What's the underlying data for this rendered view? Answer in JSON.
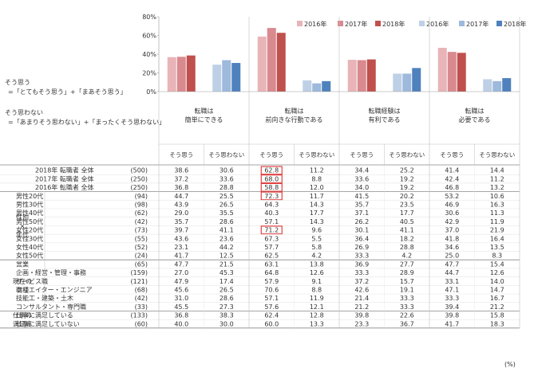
{
  "colors": {
    "yes_2016": "#e8b4b8",
    "yes_2017": "#d98a8f",
    "yes_2018": "#c0504d",
    "no_2016": "#bed0e6",
    "no_2017": "#9db9dc",
    "no_2018": "#4f81bd",
    "highlight_box": "#e03030",
    "grid": "#bfbfbf"
  },
  "definitions": {
    "yes_title": "そう思う",
    "yes_formula": "=「とてもそう思う」+「まあそう思う」",
    "no_title": "そう思わない",
    "no_formula": "=「あまりそう思わない」+「まったくそう思わない」"
  },
  "unit_note": "(%)",
  "legend": {
    "yes": [
      "2016年",
      "2017年",
      "2018年"
    ],
    "no": [
      "2016年",
      "2017年",
      "2018年"
    ]
  },
  "col_headers": [
    "そう思う",
    "そう思わない",
    "そう思う",
    "そう思わない",
    "そう思う",
    "そう思わない",
    "そう思う",
    "そう思わない"
  ],
  "chart_data": {
    "type": "bar",
    "ylim": [
      0,
      80
    ],
    "yticks": [
      "0%",
      "20%",
      "40%",
      "60%",
      "80%"
    ],
    "groups": [
      {
        "label_lines": [
          "転職は",
          "簡単にできる"
        ],
        "yes": [
          36.8,
          37.2,
          38.6
        ],
        "no": [
          28.8,
          33.6,
          30.6
        ]
      },
      {
        "label_lines": [
          "転職は",
          "前向きな行動である"
        ],
        "yes": [
          58.8,
          68.0,
          62.8
        ],
        "no": [
          12.0,
          8.8,
          11.2
        ]
      },
      {
        "label_lines": [
          "転職経験は",
          "有利である"
        ],
        "yes": [
          34.0,
          33.6,
          34.4
        ],
        "no": [
          19.2,
          19.2,
          25.2
        ]
      },
      {
        "label_lines": [
          "転職は",
          "必要である"
        ],
        "yes": [
          46.8,
          42.4,
          41.4
        ],
        "no": [
          13.2,
          11.2,
          14.4
        ]
      }
    ],
    "series": [
      {
        "name": "2016年",
        "kind": "yes"
      },
      {
        "name": "2017年",
        "kind": "yes"
      },
      {
        "name": "2018年",
        "kind": "yes"
      },
      {
        "name": "2016年",
        "kind": "no"
      },
      {
        "name": "2017年",
        "kind": "no"
      },
      {
        "name": "2018年",
        "kind": "no"
      }
    ]
  },
  "table": {
    "sections": [
      {
        "category": "",
        "rows": [
          {
            "label": "2018年 転職者 全体",
            "n": "(500)",
            "values": [
              "38.6",
              "30.6",
              "62.8",
              "11.2",
              "34.4",
              "25.2",
              "41.4",
              "14.4"
            ],
            "hl": 2
          },
          {
            "label": "2017年 転職者 全体",
            "n": "(250)",
            "values": [
              "37.2",
              "33.6",
              "68.0",
              "8.8",
              "33.6",
              "19.2",
              "42.4",
              "11.2"
            ],
            "hl": 2
          },
          {
            "label": "2016年 転職者 全体",
            "n": "(250)",
            "values": [
              "36.8",
              "28.8",
              "58.8",
              "12.0",
              "34.0",
              "19.2",
              "46.8",
              "13.2"
            ],
            "hl": 2
          }
        ]
      },
      {
        "category_lines": [
          "性別",
          "×",
          "年代"
        ],
        "rows": [
          {
            "label": "男性20代",
            "n": "(94)",
            "values": [
              "44.7",
              "25.5",
              "72.3",
              "11.7",
              "41.5",
              "20.2",
              "53.2",
              "10.6"
            ],
            "hl": 2
          },
          {
            "label": "男性30代",
            "n": "(98)",
            "values": [
              "43.9",
              "26.5",
              "64.3",
              "14.3",
              "35.7",
              "23.5",
              "46.9",
              "16.3"
            ]
          },
          {
            "label": "男性40代",
            "n": "(62)",
            "values": [
              "29.0",
              "35.5",
              "40.3",
              "17.7",
              "37.1",
              "17.7",
              "30.6",
              "11.3"
            ]
          },
          {
            "label": "男性50代",
            "n": "(42)",
            "values": [
              "35.7",
              "28.6",
              "57.1",
              "14.3",
              "26.2",
              "40.5",
              "42.9",
              "11.9"
            ]
          },
          {
            "label": "女性20代",
            "n": "(73)",
            "values": [
              "39.7",
              "41.1",
              "71.2",
              "9.6",
              "30.1",
              "41.1",
              "37.0",
              "21.9"
            ],
            "hl": 2
          },
          {
            "label": "女性30代",
            "n": "(55)",
            "values": [
              "43.6",
              "23.6",
              "67.3",
              "5.5",
              "36.4",
              "18.2",
              "41.8",
              "16.4"
            ]
          },
          {
            "label": "女性40代",
            "n": "(52)",
            "values": [
              "23.1",
              "44.2",
              "57.7",
              "5.8",
              "26.9",
              "28.8",
              "34.6",
              "13.5"
            ]
          },
          {
            "label": "女性50代",
            "n": "(24)",
            "values": [
              "41.7",
              "12.5",
              "62.5",
              "4.2",
              "33.3",
              "4.2",
              "25.0",
              "8.3"
            ]
          }
        ]
      },
      {
        "category_lines": [
          "現在の",
          "職種"
        ],
        "rows": [
          {
            "label": "営業",
            "n": "(65)",
            "values": [
              "47.7",
              "21.5",
              "63.1",
              "13.8",
              "36.9",
              "27.7",
              "47.7",
              "15.4"
            ]
          },
          {
            "label": "企画・経営・管理・事務",
            "n": "(159)",
            "values": [
              "27.0",
              "45.3",
              "64.8",
              "12.6",
              "33.3",
              "28.9",
              "44.7",
              "12.6"
            ]
          },
          {
            "label": "サービス職",
            "n": "(121)",
            "values": [
              "47.9",
              "17.4",
              "57.9",
              "9.1",
              "37.2",
              "15.7",
              "33.1",
              "14.0"
            ]
          },
          {
            "label": "クリエイター・エンジニア",
            "n": "(68)",
            "values": [
              "45.6",
              "26.5",
              "70.6",
              "8.8",
              "42.6",
              "19.1",
              "47.1",
              "14.7"
            ]
          },
          {
            "label": "技能工・建築・土木",
            "n": "(42)",
            "values": [
              "31.0",
              "28.6",
              "57.1",
              "11.9",
              "21.4",
              "33.3",
              "33.3",
              "16.7"
            ]
          },
          {
            "label": "コンサルタント・専門職",
            "n": "(33)",
            "values": [
              "45.5",
              "27.3",
              "57.6",
              "12.1",
              "21.2",
              "33.3",
              "39.4",
              "21.2"
            ]
          }
        ]
      },
      {
        "category_lines": [
          "仕事の",
          "満足度"
        ],
        "rows": [
          {
            "label": "仕事に満足している",
            "n": "(133)",
            "values": [
              "36.8",
              "38.3",
              "62.4",
              "12.8",
              "39.8",
              "22.6",
              "39.8",
              "15.8"
            ]
          },
          {
            "label": "仕事に満足していない",
            "n": "(60)",
            "values": [
              "40.0",
              "30.0",
              "60.0",
              "13.3",
              "23.3",
              "36.7",
              "41.7",
              "18.3"
            ]
          }
        ]
      }
    ]
  }
}
